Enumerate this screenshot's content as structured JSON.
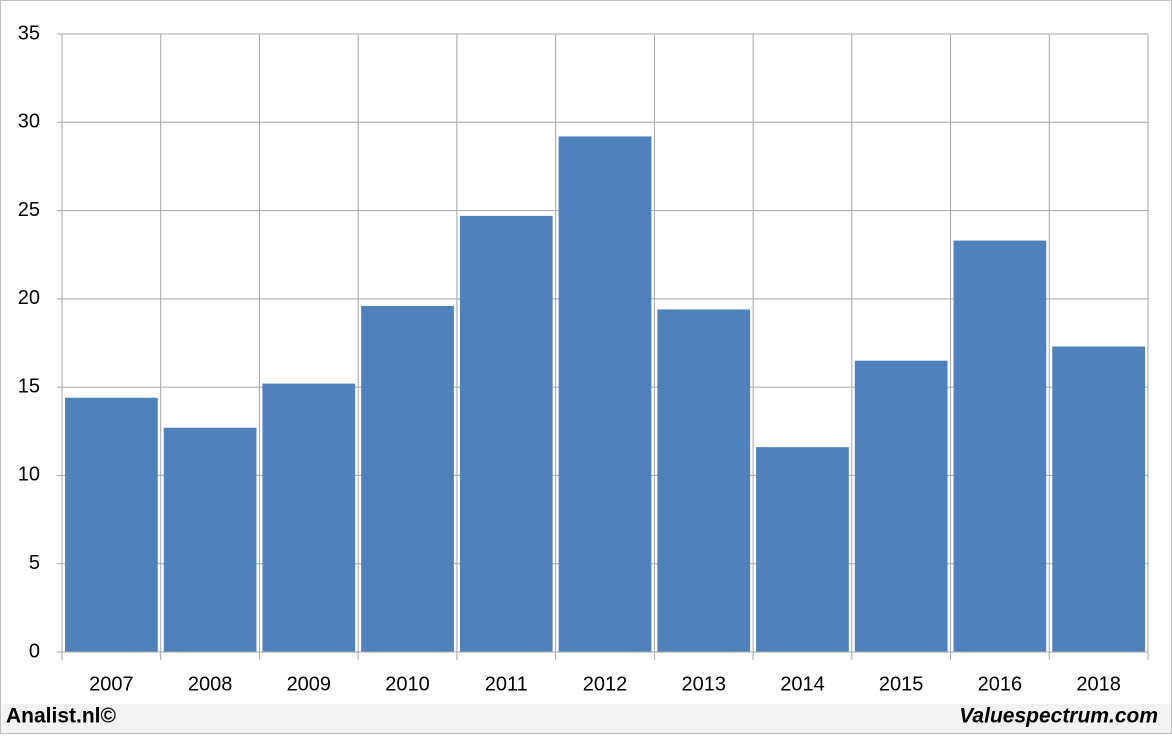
{
  "chart_data": {
    "type": "bar",
    "categories": [
      "2007",
      "2008",
      "2009",
      "2010",
      "2011",
      "2012",
      "2013",
      "2014",
      "2015",
      "2016",
      "2018"
    ],
    "values": [
      14.4,
      12.7,
      15.2,
      19.6,
      24.7,
      29.2,
      19.4,
      11.6,
      16.5,
      23.3,
      17.3
    ],
    "color": "#4f81bd",
    "ylim": [
      0,
      35
    ],
    "yticks": [
      0,
      5,
      10,
      15,
      20,
      25,
      30,
      35
    ],
    "grid": true,
    "source": "Analist.nl©",
    "credit": "Valuespectrum.com"
  }
}
